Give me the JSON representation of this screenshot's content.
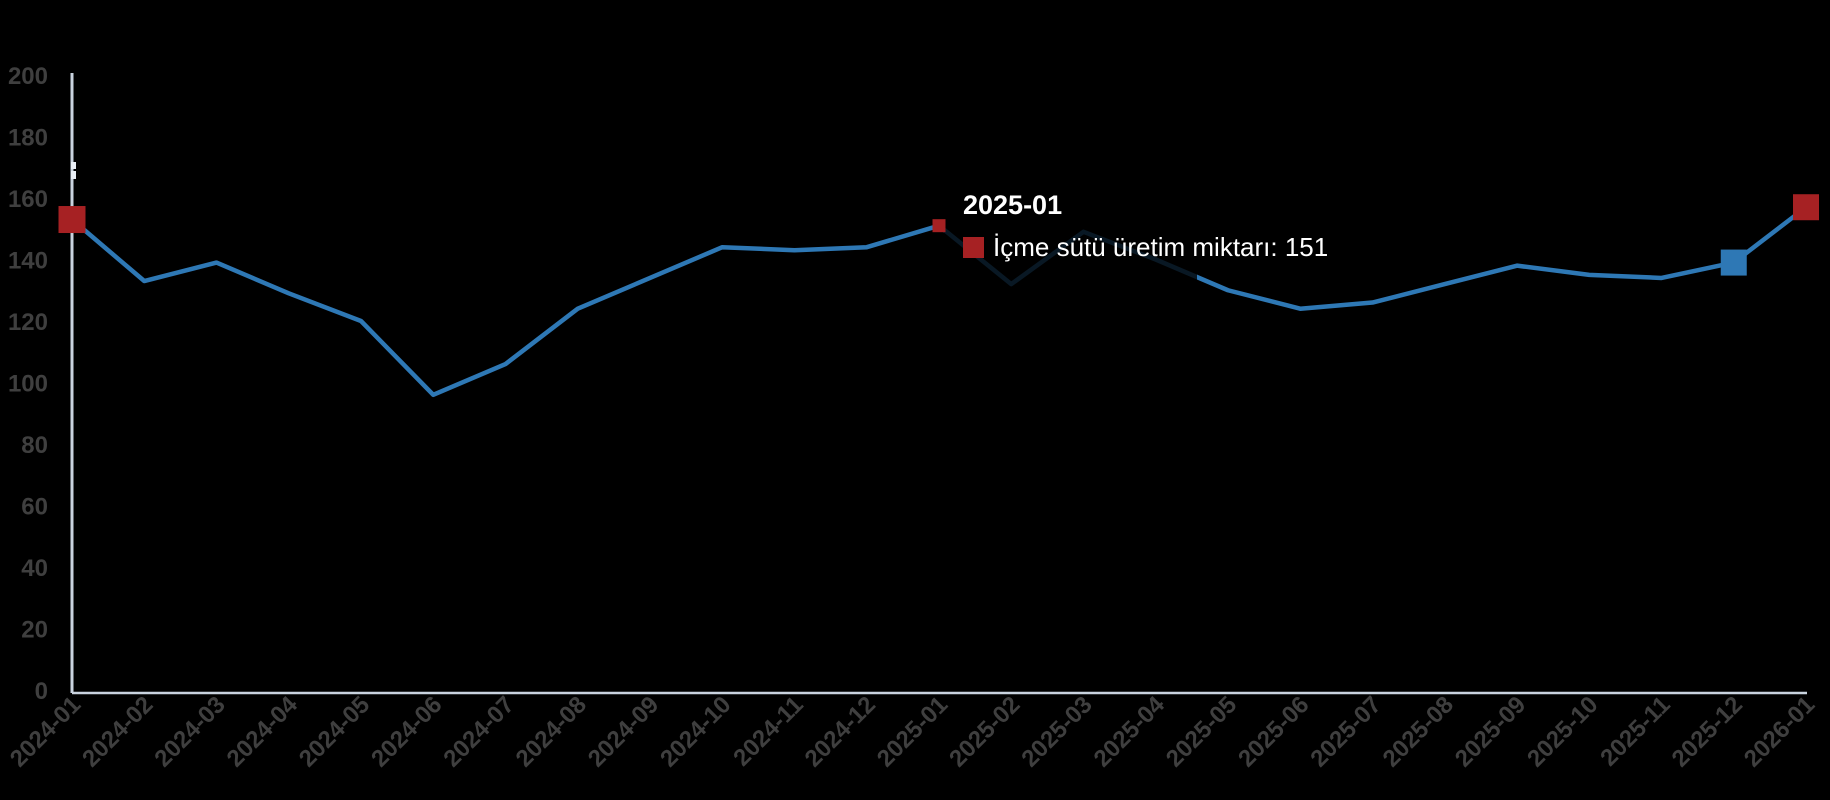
{
  "background": "#000000",
  "chart_data": {
    "type": "line",
    "title": "",
    "xlabel": "",
    "ylabel": "",
    "grid": false,
    "legend_position": "none",
    "ylim": [
      0,
      200
    ],
    "ytick_step": 20,
    "axis_color": "#c9d3df",
    "tick_label_color": "#3f3f3f",
    "categories": [
      "2024-01",
      "2024-02",
      "2024-03",
      "2024-04",
      "2024-05",
      "2024-06",
      "2024-07",
      "2024-08",
      "2024-09",
      "2024-10",
      "2024-11",
      "2024-12",
      "2025-01",
      "2025-02",
      "2025-03",
      "2025-04",
      "2025-05",
      "2025-06",
      "2025-07",
      "2025-08",
      "2025-09",
      "2025-10",
      "2025-11",
      "2025-12",
      "2026-01"
    ],
    "series": [
      {
        "name": "İçme sütü üretim miktarı",
        "color": "#2e78b5",
        "values": [
          153,
          133,
          139,
          129,
          120,
          96,
          106,
          124,
          134,
          144,
          143,
          144,
          151,
          132,
          149,
          140,
          130,
          124,
          126,
          132,
          138,
          135,
          134,
          139,
          157
        ]
      }
    ],
    "highlight_markers": [
      {
        "category": "2024-01",
        "index": 0,
        "color": "#a62123",
        "size": 27
      },
      {
        "category": "2025-01",
        "index": 12,
        "color": "#a62123",
        "size": 13
      },
      {
        "category": "2025-12",
        "index": 23,
        "color": "#2e78b5",
        "size": 26
      },
      {
        "category": "2026-01",
        "index": 24,
        "color": "#a62123",
        "size": 26
      }
    ]
  },
  "tooltip": {
    "title": "2025-01",
    "series_label": "İçme sütü üretim miktarı",
    "value": "151",
    "text": "İçme sütü üretim miktarı: 151",
    "swatch_color": "#a62123"
  }
}
